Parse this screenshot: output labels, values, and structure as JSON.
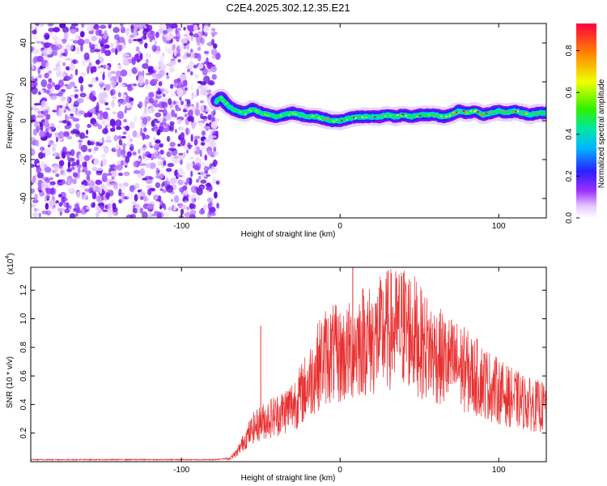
{
  "title": "C2E4.2025.302.12.35.E21",
  "chart_data": [
    {
      "type": "heatmap",
      "name": "spectrogram",
      "title": "C2E4.2025.302.12.35.E21",
      "xlabel": "Height of straight line (km)",
      "ylabel": "Frequency (Hz)",
      "xlim": [
        -195,
        130
      ],
      "ylim": [
        -50,
        50
      ],
      "xticks": [
        -100,
        0,
        100
      ],
      "yticks": [
        -40,
        -20,
        0,
        20,
        40
      ],
      "noise_region_x": [
        -195,
        -77
      ],
      "ridge": {
        "x": [
          -78,
          -75,
          -70,
          -65,
          -60,
          -55,
          -50,
          -45,
          -40,
          -35,
          -30,
          -25,
          -20,
          -15,
          -10,
          -5,
          0,
          5,
          10,
          15,
          20,
          25,
          30,
          35,
          40,
          45,
          50,
          55,
          60,
          65,
          70,
          75,
          80,
          85,
          90,
          95,
          100,
          105,
          110,
          115,
          120,
          125,
          130
        ],
        "freq": [
          10,
          12,
          7,
          5,
          4,
          6,
          4,
          3,
          2,
          3,
          4,
          3,
          2,
          2,
          1,
          0,
          0,
          1,
          2,
          2,
          2,
          2,
          3,
          2,
          3,
          2,
          3,
          3,
          3,
          2,
          3,
          5,
          4,
          5,
          3,
          4,
          5,
          4,
          5,
          4,
          3,
          4,
          4
        ]
      }
    },
    {
      "type": "colorbar",
      "name": "colorbar",
      "label": "Normalized spectral amplitude",
      "range": [
        0,
        0.93
      ],
      "ticks": [
        "0.0",
        "0.2",
        "0.4",
        "0.6",
        "0.8"
      ],
      "tick_values": [
        0,
        0.2,
        0.4,
        0.6,
        0.8
      ],
      "colors": [
        "#ffffff",
        "#e0c0ff",
        "#8000ff",
        "#2020ff",
        "#00c0ff",
        "#00e060",
        "#80ff00",
        "#ffff00",
        "#ff8000",
        "#ff0040"
      ]
    },
    {
      "type": "line",
      "name": "snr",
      "xlabel": "Height of straight line (km)",
      "ylabel": "SNR (10 * v/v)",
      "scale_label_base": "(x10",
      "scale_label_exp": "4",
      "scale_label_close": ")",
      "xlim": [
        -195,
        130
      ],
      "ylim": [
        0,
        1.36
      ],
      "xticks": [
        -100,
        0,
        100
      ],
      "yticks": [
        0.2,
        0.4,
        0.6,
        0.8,
        1.0,
        1.2
      ],
      "ytick_labels": [
        "0.2",
        "0.4",
        "0.6",
        "0.8",
        "1.0",
        "1.2"
      ],
      "color": "#e83030",
      "series": [
        {
          "name": "SNR",
          "x": [
            -195,
            -150,
            -100,
            -80,
            -70,
            -65,
            -60,
            -55,
            -50,
            -45,
            -40,
            -35,
            -30,
            -25,
            -20,
            -15,
            -10,
            -5,
            0,
            5,
            10,
            15,
            20,
            25,
            30,
            35,
            40,
            45,
            50,
            55,
            60,
            65,
            70,
            75,
            80,
            85,
            90,
            95,
            100,
            105,
            110,
            115,
            120,
            125,
            130
          ],
          "y": [
            0.01,
            0.01,
            0.01,
            0.01,
            0.02,
            0.06,
            0.15,
            0.22,
            0.26,
            0.29,
            0.31,
            0.34,
            0.38,
            0.44,
            0.52,
            0.62,
            0.7,
            0.72,
            0.7,
            0.72,
            0.78,
            0.82,
            0.8,
            0.84,
            0.88,
            0.88,
            0.9,
            0.88,
            0.8,
            0.76,
            0.72,
            0.68,
            0.66,
            0.64,
            0.6,
            0.57,
            0.54,
            0.5,
            0.47,
            0.44,
            0.42,
            0.4,
            0.38,
            0.37,
            0.36
          ]
        }
      ],
      "annotations": [
        {
          "x": -50,
          "y": 0.95
        },
        {
          "x": 8,
          "y": 1.38
        },
        {
          "x": 40,
          "y": 1.32
        }
      ]
    }
  ]
}
